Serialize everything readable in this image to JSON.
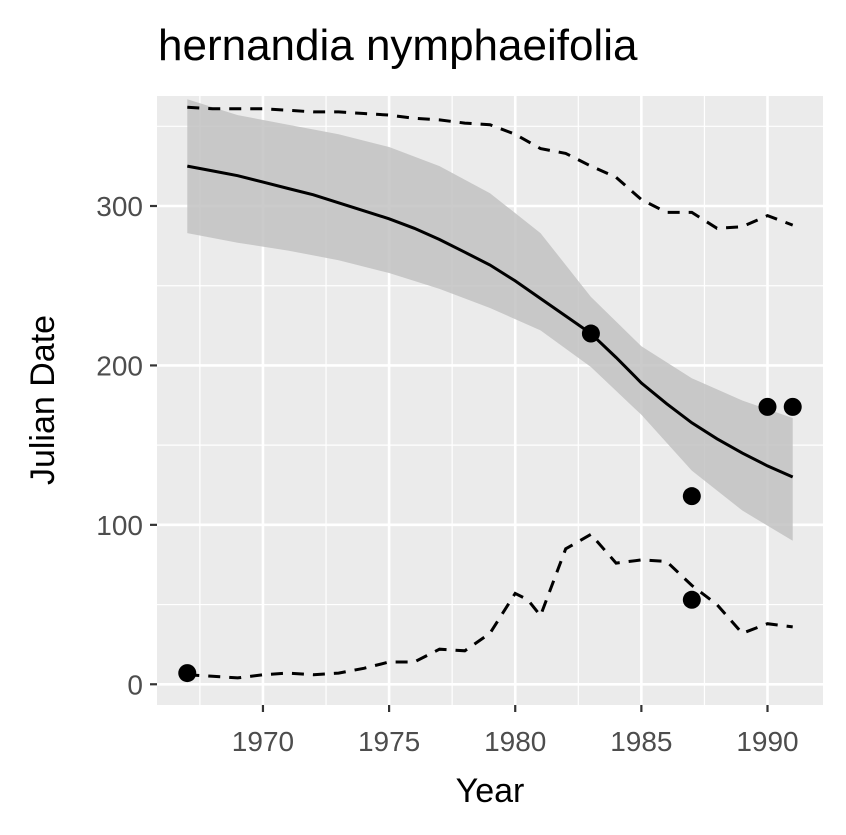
{
  "chart_data": {
    "type": "line",
    "title": "hernandia nymphaeifolia",
    "xlabel": "Year",
    "ylabel": "Julian Date",
    "xlim": [
      1965.8,
      1992.2
    ],
    "ylim": [
      -13,
      369
    ],
    "x_ticks": [
      1970,
      1975,
      1980,
      1985,
      1990
    ],
    "x_tick_labels": [
      "1970",
      "1975",
      "1980",
      "1985",
      "1990"
    ],
    "y_ticks": [
      0,
      100,
      200,
      300
    ],
    "y_tick_labels": [
      "0",
      "100",
      "200",
      "300"
    ],
    "grid": true,
    "legend": "none",
    "colors": {
      "panel": "#ebebeb",
      "grid": "#ffffff",
      "ribbon": "#c2c2c2",
      "line": "#000000",
      "tick_label": "#4d4d4d"
    },
    "points": [
      {
        "x": 1967,
        "y": 7
      },
      {
        "x": 1983,
        "y": 220
      },
      {
        "x": 1987,
        "y": 118
      },
      {
        "x": 1987,
        "y": 53
      },
      {
        "x": 1990,
        "y": 174
      },
      {
        "x": 1991,
        "y": 174
      }
    ],
    "fit_line": {
      "x": [
        1967,
        1968,
        1969,
        1970,
        1971,
        1972,
        1973,
        1974,
        1975,
        1976,
        1977,
        1978,
        1979,
        1980,
        1981,
        1982,
        1983,
        1984,
        1985,
        1986,
        1987,
        1988,
        1989,
        1990,
        1991
      ],
      "y": [
        325,
        322,
        319,
        315,
        311,
        307,
        302,
        297,
        292,
        286,
        279,
        271,
        263,
        253,
        242,
        231,
        220,
        205,
        189,
        176,
        164,
        154,
        145,
        137,
        130
      ]
    },
    "confidence_band": {
      "x": [
        1967,
        1969,
        1971,
        1973,
        1975,
        1977,
        1979,
        1981,
        1983,
        1985,
        1987,
        1989,
        1991
      ],
      "upper": [
        367,
        357,
        351,
        345,
        337,
        325,
        308,
        283,
        243,
        212,
        192,
        178,
        167
      ],
      "lower": [
        283,
        277,
        272,
        266,
        258,
        248,
        236,
        222,
        199,
        169,
        134,
        109,
        90
      ]
    },
    "upper_quantile": {
      "x": [
        1967,
        1968,
        1969,
        1970,
        1971,
        1972,
        1973,
        1974,
        1975,
        1976,
        1977,
        1978,
        1979,
        1980,
        1981,
        1982,
        1983,
        1984,
        1985,
        1986,
        1987,
        1988,
        1989,
        1990,
        1991
      ],
      "y": [
        362,
        361,
        361,
        361,
        360,
        359,
        359,
        358,
        357,
        355,
        354,
        352,
        351,
        345,
        336,
        333,
        325,
        318,
        304,
        296,
        296,
        286,
        287,
        294,
        288
      ]
    },
    "lower_quantile": {
      "x": [
        1967,
        1968,
        1969,
        1970,
        1971,
        1972,
        1973,
        1974,
        1975,
        1976,
        1977,
        1978,
        1979,
        1980,
        1980.5,
        1981,
        1982,
        1983,
        1984,
        1985,
        1986,
        1987,
        1988,
        1989,
        1990,
        1991
      ],
      "y": [
        6,
        5,
        4,
        6,
        7,
        6,
        7,
        10,
        14,
        14,
        22,
        21,
        32,
        57,
        53,
        43,
        85,
        94,
        76,
        78,
        77,
        62,
        50,
        32,
        38,
        36
      ]
    }
  }
}
